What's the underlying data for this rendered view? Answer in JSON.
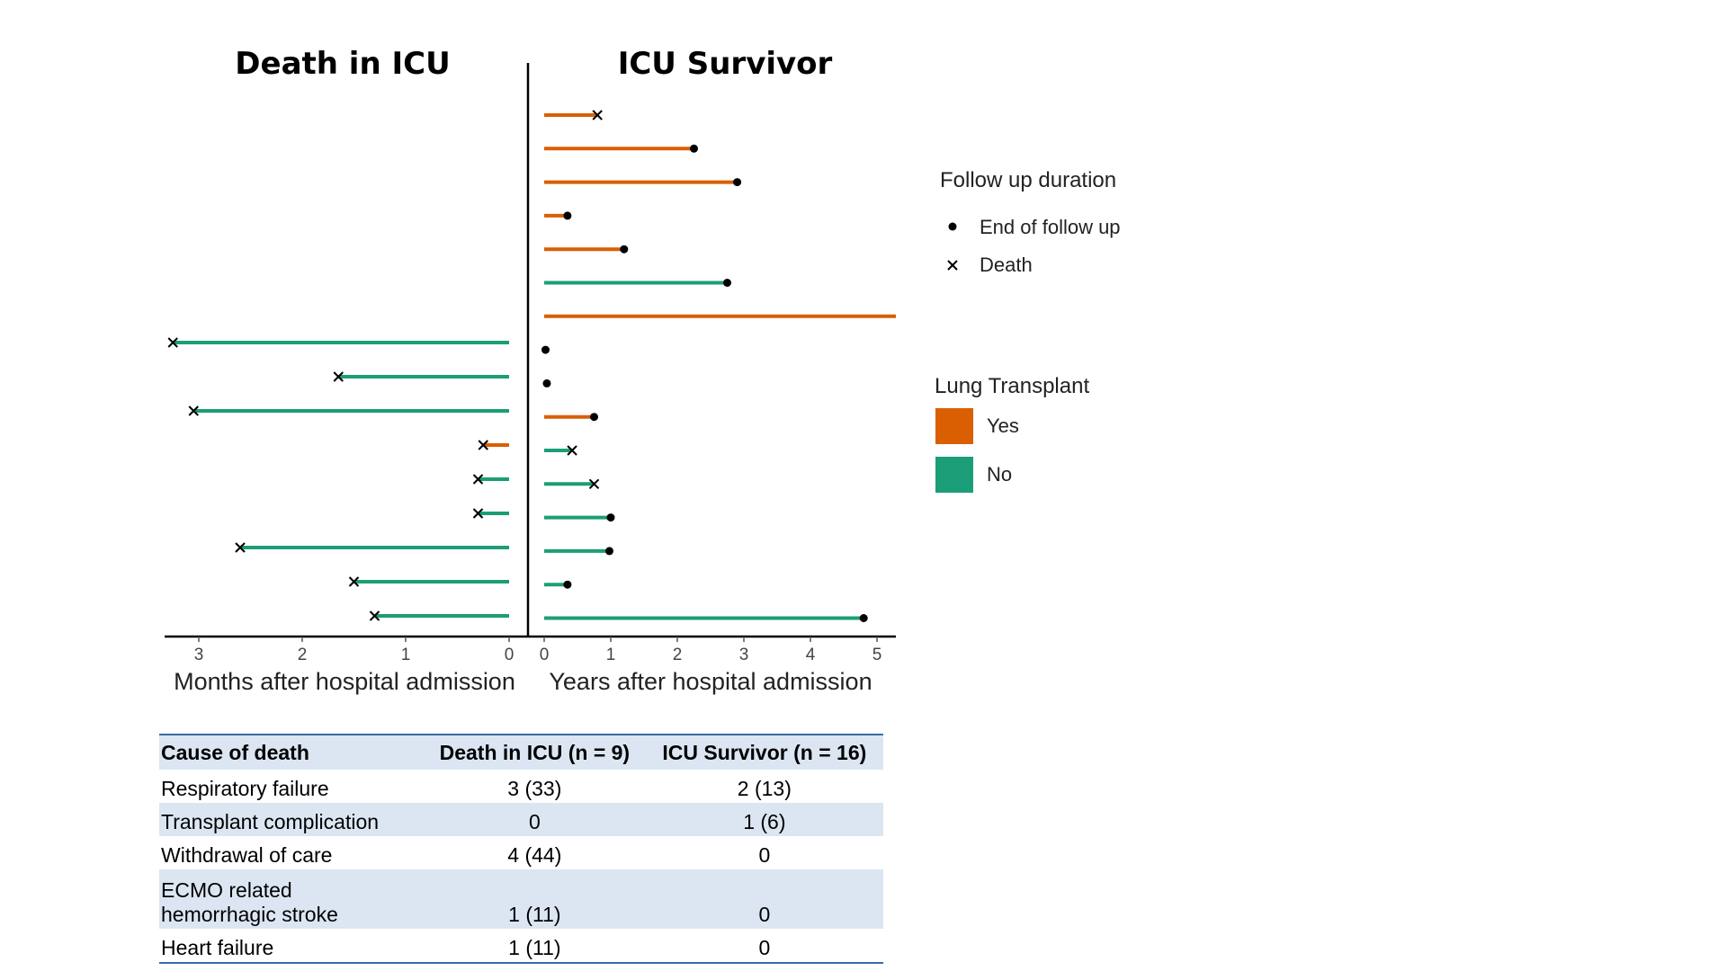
{
  "chart_data": {
    "type": "swimmer",
    "panels": [
      {
        "title": "Death in ICU",
        "xlabel": "Months after hospital admission",
        "xlim": [
          0,
          3.3
        ],
        "xticks": [
          "0",
          "1",
          "2",
          "3"
        ],
        "reversed": true
      },
      {
        "title": "ICU Survivor",
        "xlabel": "Years after hospital admission",
        "xlim": [
          0,
          5.3
        ],
        "xticks": [
          "0",
          "1",
          "2",
          "3",
          "4",
          "5"
        ],
        "reversed": false
      }
    ],
    "icu_survivor": [
      {
        "value": 0.8,
        "lung_transplant": "Yes",
        "outcome": "death"
      },
      {
        "value": 2.25,
        "lung_transplant": "Yes",
        "outcome": "end"
      },
      {
        "value": 2.9,
        "lung_transplant": "Yes",
        "outcome": "end"
      },
      {
        "value": 0.35,
        "lung_transplant": "Yes",
        "outcome": "end"
      },
      {
        "value": 1.2,
        "lung_transplant": "Yes",
        "outcome": "end"
      },
      {
        "value": 2.75,
        "lung_transplant": "No",
        "outcome": "end"
      },
      {
        "value": 5.3,
        "lung_transplant": "Yes",
        "outcome": "none"
      },
      {
        "value": 0.02,
        "lung_transplant": null,
        "outcome": "end"
      },
      {
        "value": 0.04,
        "lung_transplant": null,
        "outcome": "end"
      },
      {
        "value": 0.75,
        "lung_transplant": "Yes",
        "outcome": "end"
      },
      {
        "value": 0.42,
        "lung_transplant": "No",
        "outcome": "death"
      },
      {
        "value": 0.75,
        "lung_transplant": "No",
        "outcome": "death"
      },
      {
        "value": 1.0,
        "lung_transplant": "No",
        "outcome": "end"
      },
      {
        "value": 0.98,
        "lung_transplant": "No",
        "outcome": "end"
      },
      {
        "value": 0.35,
        "lung_transplant": "No",
        "outcome": "end"
      },
      {
        "value": 4.8,
        "lung_transplant": "No",
        "outcome": "end"
      }
    ],
    "death_in_icu": [
      {
        "value": 3.25,
        "lung_transplant": "No",
        "outcome": "death"
      },
      {
        "value": 1.65,
        "lung_transplant": "No",
        "outcome": "death"
      },
      {
        "value": 3.05,
        "lung_transplant": "No",
        "outcome": "death"
      },
      {
        "value": 0.25,
        "lung_transplant": "Yes",
        "outcome": "death"
      },
      {
        "value": 0.3,
        "lung_transplant": "No",
        "outcome": "death"
      },
      {
        "value": 0.3,
        "lung_transplant": "No",
        "outcome": "death"
      },
      {
        "value": 2.6,
        "lung_transplant": "No",
        "outcome": "death"
      },
      {
        "value": 1.5,
        "lung_transplant": "No",
        "outcome": "death"
      },
      {
        "value": 1.3,
        "lung_transplant": "No",
        "outcome": "death"
      }
    ],
    "legend": {
      "follow_up": {
        "title": "Follow up duration",
        "items": [
          {
            "label": "End of follow up",
            "symbol": "dot"
          },
          {
            "label": "Death",
            "symbol": "cross"
          }
        ]
      },
      "lung_transplant": {
        "title": "Lung Transplant",
        "items": [
          {
            "label": "Yes",
            "color": "#d95f02"
          },
          {
            "label": "No",
            "color": "#1b9e77"
          }
        ]
      },
      "placement": "right"
    },
    "colors": {
      "Yes": "#d95f02",
      "No": "#1b9e77"
    }
  },
  "table": {
    "headers": [
      "Cause of death",
      "Death in ICU (n = 9)",
      "ICU Survivor (n = 16)"
    ],
    "rows": [
      [
        "Respiratory failure",
        "3 (33)",
        "2 (13)"
      ],
      [
        "Transplant complication",
        "0",
        "1 (6)"
      ],
      [
        "Withdrawal of care",
        "4 (44)",
        "0"
      ],
      [
        "ECMO related\nhemorrhagic stroke",
        "1 (11)",
        "0"
      ],
      [
        "Heart failure",
        "1 (11)",
        "0"
      ]
    ]
  }
}
